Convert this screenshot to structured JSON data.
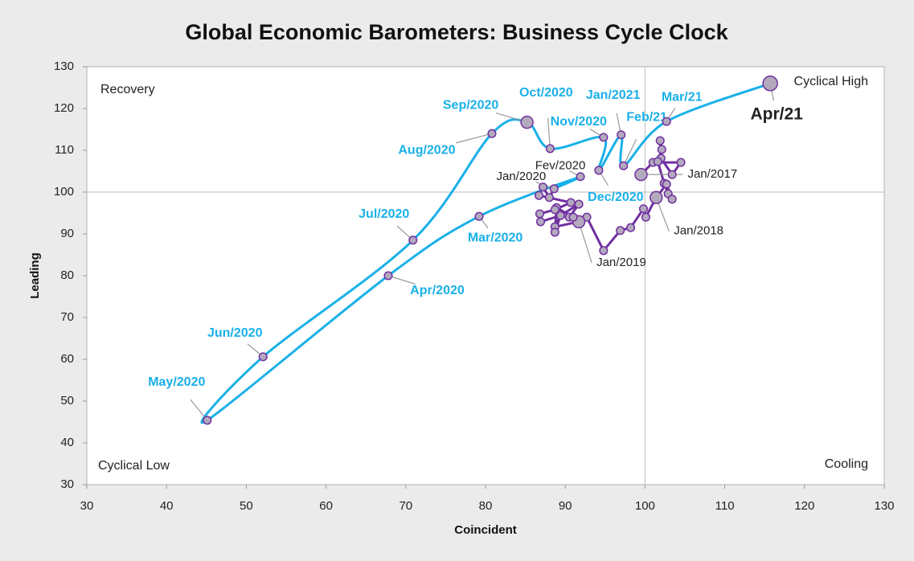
{
  "chart_data": {
    "type": "scatter",
    "title": "Global Economic Barometers: Business Cycle Clock",
    "x_label": "Coincident",
    "y_label": "Leading",
    "xlim": [
      30,
      130
    ],
    "ylim": [
      30,
      130
    ],
    "xticks": [
      30,
      40,
      50,
      60,
      70,
      80,
      90,
      100,
      110,
      120,
      130
    ],
    "yticks": [
      30,
      40,
      50,
      60,
      70,
      80,
      90,
      100,
      110,
      120,
      130
    ],
    "reference_lines": {
      "x": 100,
      "y": 100
    },
    "quadrant_labels": {
      "top_left": "Recovery",
      "top_right": "Cyclical High",
      "bottom_left": "Cyclical Low",
      "bottom_right": "Cooling"
    },
    "series": [
      {
        "color": "#7030a0",
        "marker_fill": "#b3a9bd",
        "x": [
          99.5,
          101.0,
          104.5,
          103.4,
          102.0,
          101.9,
          102.1,
          101.6,
          102.4,
          102.9,
          103.4,
          102.7,
          101.4,
          100.1,
          99.8,
          98.2,
          96.9,
          94.8,
          92.7,
          91.5,
          90.5,
          91.7,
          89.4,
          88.7,
          91.7,
          91.0,
          88.9,
          88.7,
          89.4,
          86.9,
          86.8,
          88.7,
          90.7,
          86.7,
          87.2,
          88.0
        ],
        "y": [
          104.2,
          107.1,
          107.1,
          104.2,
          108.1,
          112.3,
          110.2,
          107.3,
          102.1,
          99.6,
          98.3,
          101.9,
          98.7,
          94.0,
          96.0,
          91.5,
          90.8,
          86.0,
          94.0,
          93.1,
          94.0,
          97.1,
          94.4,
          91.7,
          92.9,
          94.0,
          96.3,
          90.4,
          94.4,
          92.9,
          94.8,
          95.8,
          97.5,
          99.2,
          101.2,
          98.7
        ],
        "point_labels": [
          "Jan/2017",
          null,
          null,
          null,
          null,
          null,
          null,
          null,
          null,
          null,
          null,
          null,
          "Jan/2018",
          null,
          null,
          null,
          null,
          null,
          null,
          null,
          null,
          null,
          null,
          null,
          "Jan/2019",
          null,
          null,
          null,
          null,
          null,
          null,
          null,
          null,
          null,
          null,
          null
        ],
        "label_color": "#222222"
      },
      {
        "color": "#1ab0e8",
        "marker_fill": "#b3a9bd",
        "x": [
          88.6,
          91.9,
          79.2,
          67.8,
          45.1,
          52.1,
          70.9,
          80.8,
          85.2,
          88.1,
          94.8,
          94.2,
          97.0,
          97.3,
          102.7,
          115.7
        ],
        "y": [
          100.8,
          103.7,
          94.2,
          80.0,
          45.4,
          60.6,
          88.5,
          114.0,
          116.7,
          110.4,
          113.1,
          105.2,
          113.7,
          106.3,
          116.9,
          126.0
        ],
        "point_labels": [
          "Jan/2020",
          "Fev/2020",
          "Mar/2020",
          "Apr/2020",
          "May/2020",
          "Jun/2020",
          "Jul/2020",
          "Aug/2020",
          "Sep/2020",
          "Oct/2020",
          "Nov/2020",
          "Dec/2020",
          "Jan/2021",
          "Feb/21",
          "Mar/21",
          "Apr/21"
        ],
        "label_colors": [
          "#222222",
          "#222222",
          "#1ab0e8",
          "#1ab0e8",
          "#1ab0e8",
          "#1ab0e8",
          "#1ab0e8",
          "#1ab0e8",
          "#1ab0e8",
          "#1ab0e8",
          "#1ab0e8",
          "#1ab0e8",
          "#1ab0e8",
          "#1ab0e8",
          "#1ab0e8",
          "#222222"
        ]
      }
    ]
  }
}
